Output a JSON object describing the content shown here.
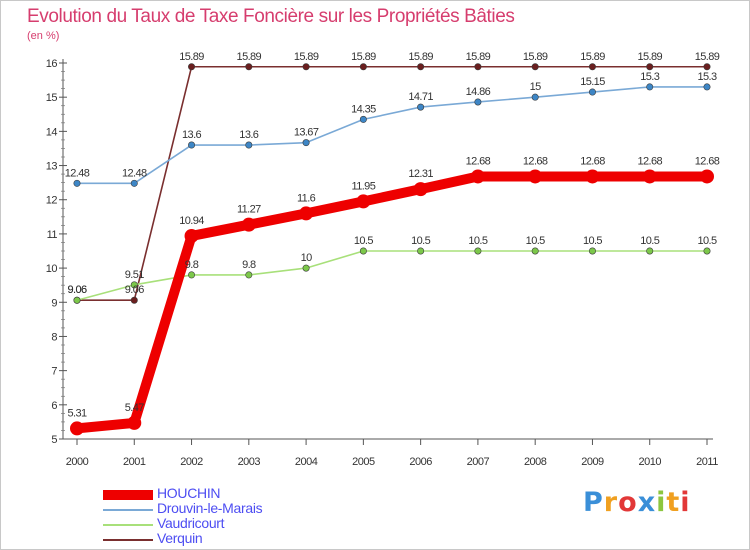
{
  "title": "Evolution du Taux de Taxe Foncière sur les Propriétés Bâties",
  "unit_label": "(en %)",
  "logo": {
    "text": "Proxiti",
    "letters": [
      "P",
      "r",
      "o",
      "x",
      "i",
      "t",
      "i"
    ],
    "colors": [
      "#3a8fd8",
      "#f0a020",
      "#e23838",
      "#3a8fd8",
      "#8cc63f",
      "#f0a020",
      "#e23838"
    ]
  },
  "chart_data": {
    "type": "line",
    "title": "Evolution du Taux de Taxe Foncière sur les Propriétés Bâties",
    "xlabel": "",
    "ylabel": "(en %)",
    "x": [
      2000,
      2001,
      2002,
      2003,
      2004,
      2005,
      2006,
      2007,
      2008,
      2009,
      2010,
      2011
    ],
    "categories": [
      "2000",
      "2001",
      "2002",
      "2003",
      "2004",
      "2005",
      "2006",
      "2007",
      "2008",
      "2009",
      "2010",
      "2011"
    ],
    "ylim": [
      5,
      16
    ],
    "yticks": [
      5,
      6,
      7,
      8,
      9,
      10,
      11,
      12,
      13,
      14,
      15,
      16
    ],
    "grid": false,
    "legend_position": "bottom-left",
    "series": [
      {
        "name": "Verquin",
        "color": "#7a2f2f",
        "marker_color": "#6b1f1f",
        "weight": "thin",
        "values": [
          9.06,
          9.06,
          15.89,
          15.89,
          15.89,
          15.89,
          15.89,
          15.89,
          15.89,
          15.89,
          15.89,
          15.89
        ],
        "labels": [
          "9.06",
          "9.06",
          "15.89",
          "15.89",
          "15.89",
          "15.89",
          "15.89",
          "15.89",
          "15.89",
          "15.89",
          "15.89",
          "15.89"
        ]
      },
      {
        "name": "Drouvin-le-Marais",
        "color": "#7aa9d6",
        "marker_color": "#3d86c6",
        "weight": "thin",
        "values": [
          12.48,
          12.48,
          13.6,
          13.6,
          13.67,
          14.35,
          14.71,
          14.86,
          15,
          15.15,
          15.3,
          15.3
        ],
        "labels": [
          "12.48",
          "12.48",
          "13.6",
          "13.6",
          "13.67",
          "14.35",
          "14.71",
          "14.86",
          "15",
          "15.15",
          "15.3",
          "15.3"
        ]
      },
      {
        "name": "Vaudricourt",
        "color": "#a8e07a",
        "marker_color": "#7cc84a",
        "weight": "thin",
        "values": [
          9.06,
          9.51,
          9.8,
          9.8,
          10,
          10.5,
          10.5,
          10.5,
          10.5,
          10.5,
          10.5,
          10.5
        ],
        "labels": [
          "9.06",
          "9.51",
          "9.8",
          "9.8",
          "10",
          "10.5",
          "10.5",
          "10.5",
          "10.5",
          "10.5",
          "10.5",
          "10.5"
        ]
      },
      {
        "name": "HOUCHIN",
        "color": "#ee0000",
        "marker_color": "#ee0000",
        "weight": "thick",
        "values": [
          5.31,
          5.47,
          10.94,
          11.27,
          11.6,
          11.95,
          12.31,
          12.68,
          12.68,
          12.68,
          12.68,
          12.68
        ],
        "labels": [
          "5.31",
          "5.47",
          "10.94",
          "11.27",
          "11.6",
          "11.95",
          "12.31",
          "12.68",
          "12.68",
          "12.68",
          "12.68",
          "12.68"
        ]
      }
    ],
    "legend_order": [
      "HOUCHIN",
      "Drouvin-le-Marais",
      "Vaudricourt",
      "Verquin"
    ]
  }
}
